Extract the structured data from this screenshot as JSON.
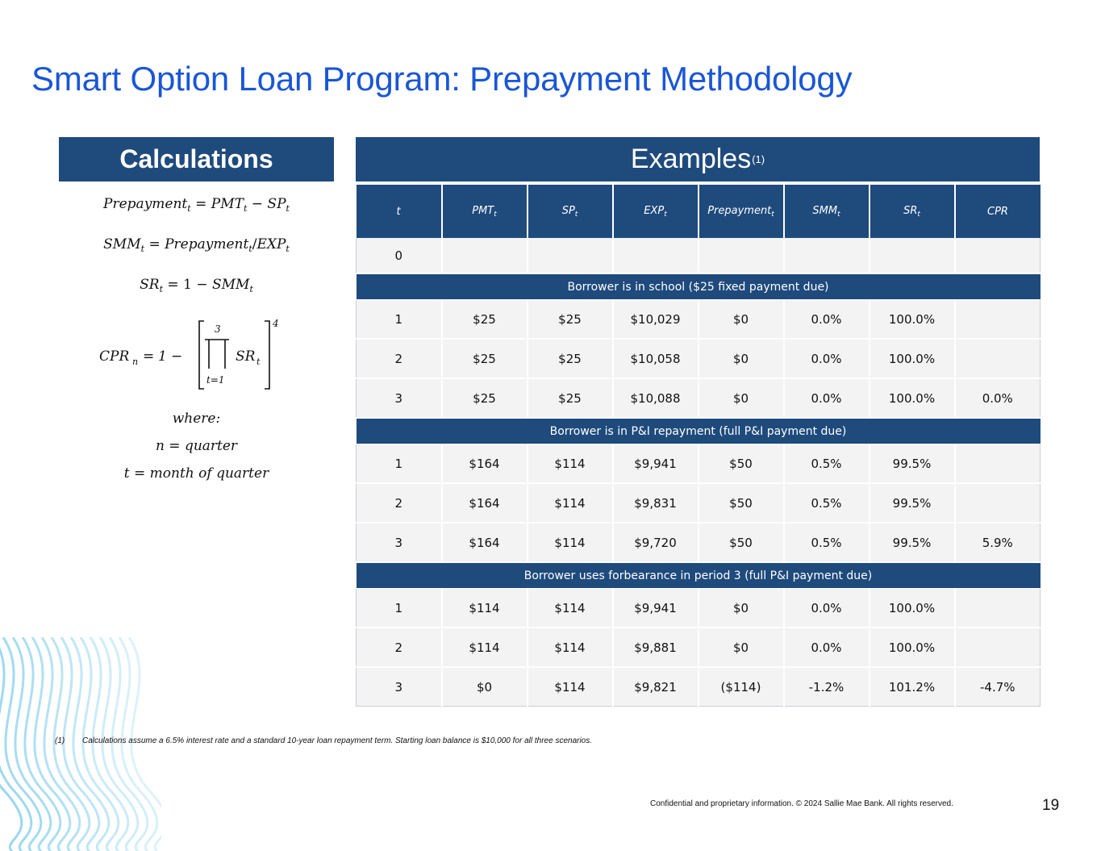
{
  "title": "Smart Option Loan Program: Prepayment Methodology",
  "calculations": {
    "header": "Calculations",
    "formula1": {
      "lhs": "Prepayment",
      "sub": "t",
      "rhs_a": "PMT",
      "rhs_b": "SP"
    },
    "formula2": {
      "lhs": "SMM",
      "rhs_a": "Prepayment",
      "rhs_b": "EXP"
    },
    "formula3": {
      "lhs": "SR",
      "one": "1",
      "rhs": "SMM"
    },
    "formula4": {
      "lhs": "CPR",
      "sub": "n",
      "one": "1",
      "upper": "3",
      "lower": "t=1",
      "term": "SR",
      "exp": "4"
    },
    "where": "where:",
    "def_n": "n = quarter",
    "def_t": "t = month of quarter"
  },
  "examples": {
    "header": "Examples",
    "header_note": "(1)",
    "columns": [
      {
        "label": "t",
        "sub": ""
      },
      {
        "label": "PMT",
        "sub": "t"
      },
      {
        "label": "SP",
        "sub": "t"
      },
      {
        "label": "EXP",
        "sub": "t"
      },
      {
        "label": "Prepayment",
        "sub": "t"
      },
      {
        "label": "SMM",
        "sub": "t"
      },
      {
        "label": "SR",
        "sub": "t"
      },
      {
        "label": "CPR",
        "sub": ""
      }
    ],
    "initial_row": [
      "0",
      "",
      "",
      "",
      "",
      "",
      "",
      ""
    ],
    "sections": [
      {
        "title": "Borrower is in school ($25 fixed payment due)",
        "rows": [
          [
            "1",
            "$25",
            "$25",
            "$10,029",
            "$0",
            "0.0%",
            "100.0%",
            ""
          ],
          [
            "2",
            "$25",
            "$25",
            "$10,058",
            "$0",
            "0.0%",
            "100.0%",
            ""
          ],
          [
            "3",
            "$25",
            "$25",
            "$10,088",
            "$0",
            "0.0%",
            "100.0%",
            "0.0%"
          ]
        ]
      },
      {
        "title": "Borrower is in P&I repayment (full P&I payment due)",
        "rows": [
          [
            "1",
            "$164",
            "$114",
            "$9,941",
            "$50",
            "0.5%",
            "99.5%",
            ""
          ],
          [
            "2",
            "$164",
            "$114",
            "$9,831",
            "$50",
            "0.5%",
            "99.5%",
            ""
          ],
          [
            "3",
            "$164",
            "$114",
            "$9,720",
            "$50",
            "0.5%",
            "99.5%",
            "5.9%"
          ]
        ]
      },
      {
        "title": "Borrower uses forbearance in period 3 (full P&I payment due)",
        "rows": [
          [
            "1",
            "$114",
            "$114",
            "$9,941",
            "$0",
            "0.0%",
            "100.0%",
            ""
          ],
          [
            "2",
            "$114",
            "$114",
            "$9,881",
            "$0",
            "0.0%",
            "100.0%",
            ""
          ],
          [
            "3",
            "$0",
            "$114",
            "$9,821",
            "($114)",
            "-1.2%",
            "101.2%",
            "-4.7%"
          ]
        ]
      }
    ]
  },
  "footnote": {
    "num": "(1)",
    "text": "Calculations assume a 6.5% interest rate and a standard 10-year loan repayment term. Starting loan balance is $10,000 for all three scenarios."
  },
  "confidential": "Confidential and proprietary information. © 2024 Sallie Mae Bank. All rights reserved.",
  "page_number": "19",
  "colors": {
    "title": "#1a56d6",
    "header_bg": "#1f4a7c",
    "cell_bg": "#f3f3f3",
    "wave": "#8fd3ee"
  }
}
